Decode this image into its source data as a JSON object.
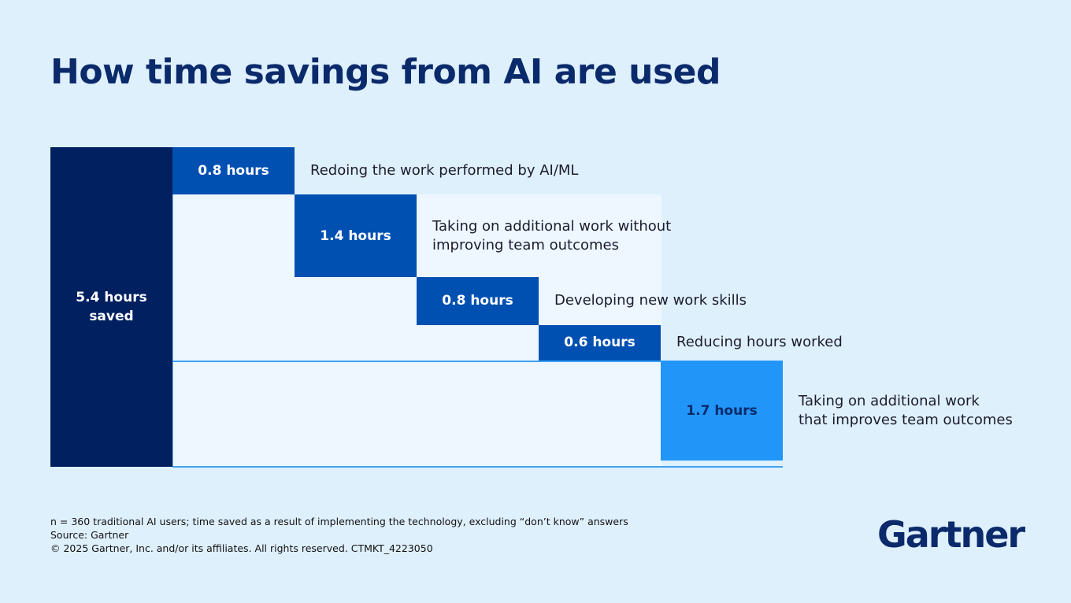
{
  "chart_data": {
    "type": "waterfall",
    "title": "How time savings from AI are used",
    "total": 5.4,
    "total_label": "5.4 hours saved",
    "total_color": "#002060",
    "categories": [
      "Redoing the work performed by AI/ML",
      "Taking on additional work without\nimproving team outcomes",
      "Developing new work skills",
      "Reducing hours worked",
      "Taking on additional work\nthat improves team outcomes"
    ],
    "values": [
      0.8,
      1.4,
      0.8,
      0.6,
      1.7
    ],
    "value_labels": [
      "0.8 hours",
      "1.4 hours",
      "0.8 hours",
      "0.6 hours",
      "1.7 hours"
    ],
    "colors": [
      "#0050b2",
      "#0050b2",
      "#0050b2",
      "#0050b2",
      "#2196f8"
    ],
    "notes": [
      "n = 360 traditional AI users; time saved as a result of implementing the technology, excluding “don’t know” answers",
      "Source: Gartner",
      "© 2025 Gartner, Inc. and/or its affiliates. All rights reserved. CTMKT_4223050"
    ],
    "logo": "Gartner"
  }
}
